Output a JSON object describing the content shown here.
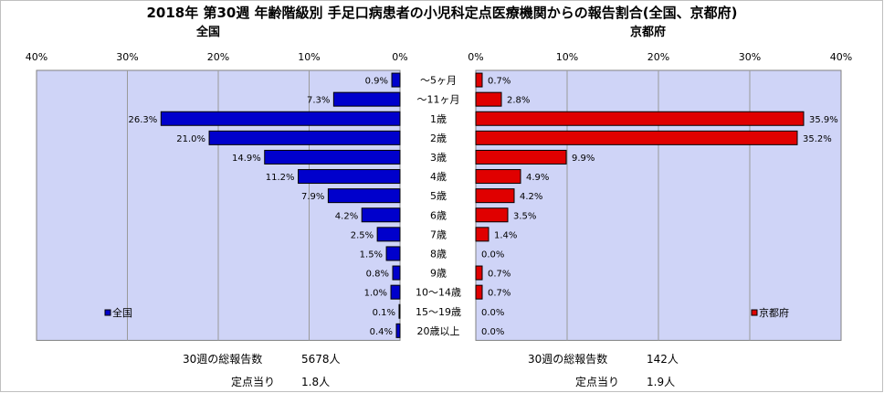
{
  "title": "2018年 第30週 年齢階級別 手足口病患者の小児科定点医療機関からの報告割合(全国、京都府)",
  "chart_data": [
    {
      "type": "bar",
      "orientation": "horizontal",
      "title": "全国",
      "series": [
        {
          "name": "全国",
          "color": "#0000cc",
          "values": [
            0.9,
            7.3,
            26.3,
            21.0,
            14.9,
            11.2,
            7.9,
            4.2,
            2.5,
            1.5,
            0.8,
            1.0,
            0.1,
            0.4
          ]
        }
      ],
      "xlim": [
        0,
        40
      ],
      "x_direction": "reversed",
      "ticks": [
        "40%",
        "30%",
        "20%",
        "10%",
        "0%"
      ],
      "grid": true,
      "legend": "bottom-left",
      "plot_background": "#cfd4f7"
    },
    {
      "type": "bar",
      "orientation": "horizontal",
      "title": "京都府",
      "series": [
        {
          "name": "京都府",
          "color": "#e00000",
          "values": [
            0.7,
            2.8,
            35.9,
            35.2,
            9.9,
            4.9,
            4.2,
            3.5,
            1.4,
            0.0,
            0.7,
            0.7,
            0.0,
            0.0
          ]
        }
      ],
      "xlim": [
        0,
        40
      ],
      "ticks": [
        "0%",
        "10%",
        "20%",
        "30%",
        "40%"
      ],
      "grid": true,
      "legend": "bottom-right",
      "plot_background": "#cfd4f7"
    }
  ],
  "categories": [
    "～5ヶ月",
    "～11ヶ月",
    "1歳",
    "2歳",
    "3歳",
    "4歳",
    "5歳",
    "6歳",
    "7歳",
    "8歳",
    "9歳",
    "10～14歳",
    "15～19歳",
    "20歳以上"
  ],
  "footer": {
    "national": {
      "reports_label": "30週の総報告数",
      "reports_value": "5678人",
      "per_sentinel_label": "定点当り",
      "per_sentinel_value": "1.8人"
    },
    "kyoto": {
      "reports_label": "30週の総報告数",
      "reports_value": "142人",
      "per_sentinel_label": "定点当り",
      "per_sentinel_value": "1.9人"
    }
  }
}
